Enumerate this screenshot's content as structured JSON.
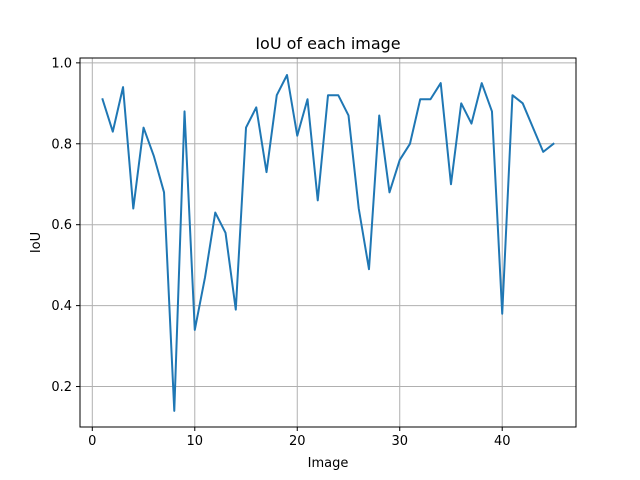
{
  "chart_data": {
    "type": "line",
    "title": "IoU of each image",
    "xlabel": "Image",
    "ylabel": "IoU",
    "xlim": [
      -1.2,
      47.2
    ],
    "ylim": [
      0.1,
      1.012
    ],
    "xticks": [
      0,
      10,
      20,
      30,
      40
    ],
    "xtick_labels": [
      "0",
      "10",
      "20",
      "30",
      "40"
    ],
    "yticks": [
      0.2,
      0.4,
      0.6,
      0.8,
      1.0
    ],
    "ytick_labels": [
      "0.2",
      "0.4",
      "0.6",
      "0.8",
      "1.0"
    ],
    "grid": true,
    "legend": "none",
    "line_color": "#1f77b4",
    "series": [
      {
        "x": [
          1,
          2,
          3,
          4,
          5,
          6,
          7,
          8,
          9,
          10,
          11,
          12,
          13,
          14,
          15,
          16,
          17,
          18,
          19,
          20,
          21,
          22,
          23,
          24,
          25,
          26,
          27,
          28,
          29,
          30,
          31,
          32,
          33,
          34,
          35,
          36,
          37,
          38,
          39,
          40,
          41,
          42,
          43,
          44,
          45
        ],
        "values": [
          0.91,
          0.83,
          0.94,
          0.64,
          0.84,
          0.77,
          0.68,
          0.14,
          0.88,
          0.34,
          0.47,
          0.63,
          0.58,
          0.39,
          0.84,
          0.89,
          0.73,
          0.92,
          0.97,
          0.82,
          0.91,
          0.66,
          0.92,
          0.92,
          0.87,
          0.64,
          0.49,
          0.87,
          0.68,
          0.76,
          0.8,
          0.91,
          0.91,
          0.95,
          0.7,
          0.9,
          0.85,
          0.95,
          0.88,
          0.38,
          0.92,
          0.9,
          0.84,
          0.78,
          0.8
        ]
      }
    ]
  }
}
